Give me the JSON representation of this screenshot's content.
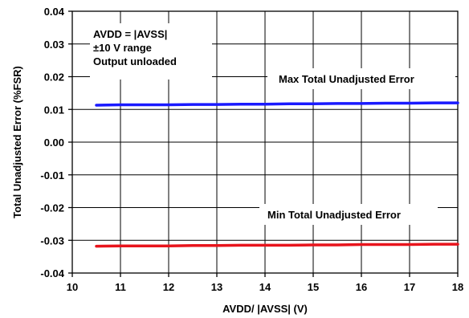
{
  "chart_data": {
    "type": "line",
    "xlabel": "AVDD/ |AVSS| (V)",
    "ylabel": "Total Unadjusted Error (%FSR)",
    "xlim": [
      10,
      18
    ],
    "ylim": [
      -0.04,
      0.04
    ],
    "x_ticks": [
      "10",
      "11",
      "12",
      "13",
      "14",
      "15",
      "16",
      "17",
      "18"
    ],
    "y_ticks": [
      "0.04",
      "0.03",
      "0.02",
      "0.01",
      "0.00",
      "-0.01",
      "-0.02",
      "-0.03",
      "-0.04"
    ],
    "grid": true,
    "annotation_lines": [
      "AVDD = |AVSS|",
      "±10 V range",
      "Output unloaded"
    ],
    "series": [
      {
        "name": "Max Total Unadjusted Error",
        "color": "#1a1aff",
        "x": [
          10.5,
          11,
          11.5,
          12,
          12.5,
          13,
          13.5,
          14,
          14.5,
          15,
          15.5,
          16,
          16.5,
          17,
          17.5,
          18
        ],
        "y": [
          0.0113,
          0.0114,
          0.0114,
          0.0114,
          0.0115,
          0.0115,
          0.0116,
          0.0116,
          0.0117,
          0.0117,
          0.0118,
          0.0118,
          0.0119,
          0.0119,
          0.012,
          0.012
        ]
      },
      {
        "name": "Min Total Unadjusted Error",
        "color": "#e8141c",
        "x": [
          10.5,
          11,
          11.5,
          12,
          12.5,
          13,
          13.5,
          14,
          14.5,
          15,
          15.5,
          16,
          16.5,
          17,
          17.5,
          18
        ],
        "y": [
          -0.0318,
          -0.0317,
          -0.0317,
          -0.0317,
          -0.0316,
          -0.0316,
          -0.0315,
          -0.0315,
          -0.0315,
          -0.0314,
          -0.0314,
          -0.0313,
          -0.0313,
          -0.0313,
          -0.0312,
          -0.0312
        ]
      }
    ]
  }
}
